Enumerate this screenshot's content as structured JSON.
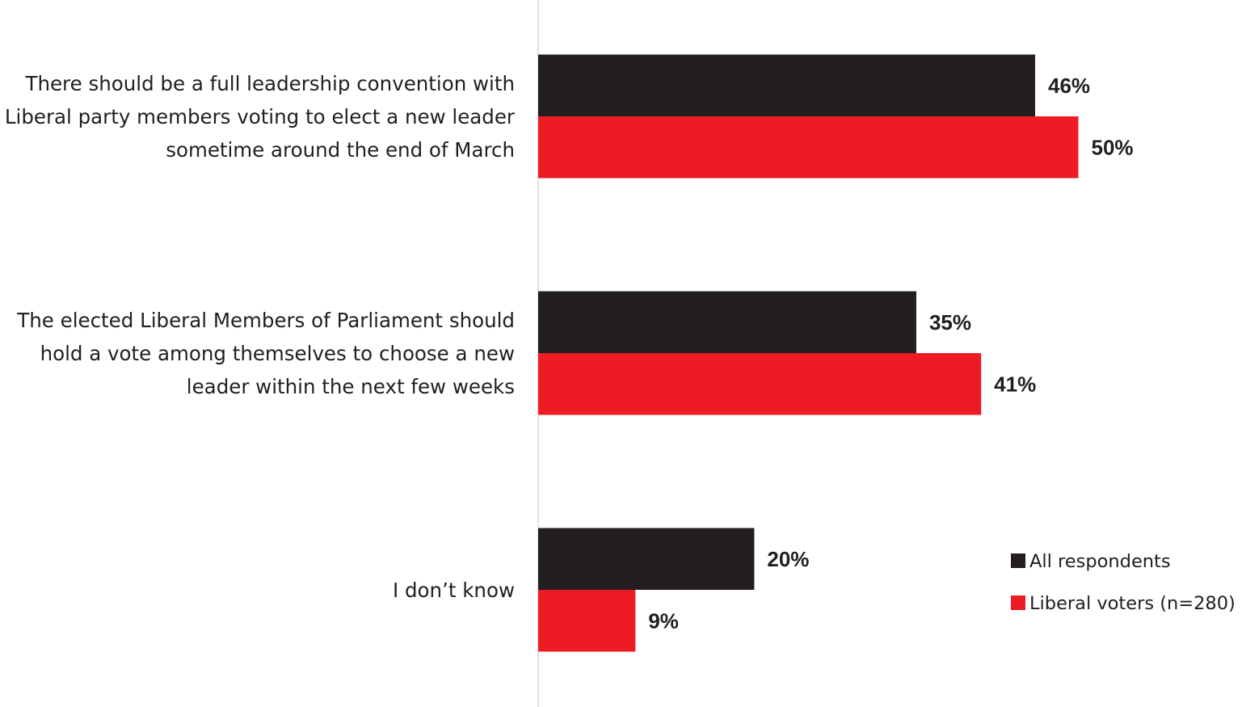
{
  "chart_data": {
    "type": "bar",
    "orientation": "horizontal",
    "categories": [
      [
        "There should be a full leadership convention with",
        "Liberal party members voting to elect a new leader",
        "sometime around the end of March"
      ],
      [
        "The elected Liberal Members of Parliament should",
        "hold a vote among themselves to choose a new",
        "leader within the next few weeks"
      ],
      [
        "I don’t know"
      ]
    ],
    "series": [
      {
        "name": "All respondents",
        "color": "#231f20",
        "values": [
          46,
          35,
          20
        ],
        "labels": [
          "46%",
          "35%",
          "20%"
        ]
      },
      {
        "name": "Liberal voters (n=280)",
        "color": "#ed1c24",
        "values": [
          50,
          41,
          9
        ],
        "labels": [
          "50%",
          "41%",
          "9%"
        ]
      }
    ],
    "xlim": [
      0,
      100
    ],
    "unit": "%",
    "grid": false,
    "legend_position": "bottom-right",
    "title": "",
    "xlabel": "",
    "ylabel": ""
  }
}
